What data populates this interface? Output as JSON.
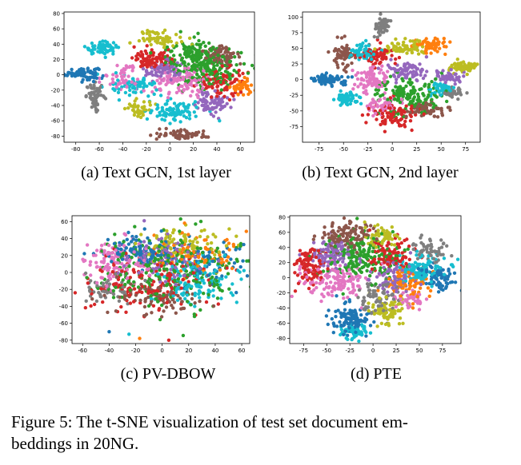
{
  "figure_caption": "Figure 5: The t-SNE visualization of test set document embeddings in 20NG.",
  "figure_caption_line1": "Figure 5: The t-SNE visualization of test set document em-",
  "figure_caption_line2": "beddings in 20NG.",
  "palette": [
    "#1f77b4",
    "#ff7f0e",
    "#2ca02c",
    "#d62728",
    "#9467bd",
    "#8c564b",
    "#e377c2",
    "#7f7f7f",
    "#bcbd22",
    "#17becf"
  ],
  "chart_data": [
    {
      "type": "scatter",
      "caption": "(a) Text GCN, 1st layer",
      "xlim": [
        -90,
        72
      ],
      "ylim": [
        -88,
        82
      ],
      "xticks": [
        -80,
        -60,
        -40,
        -20,
        0,
        20,
        40,
        60
      ],
      "yticks": [
        -80,
        -60,
        -40,
        -20,
        0,
        20,
        40,
        60,
        80
      ],
      "grid": false,
      "clusters": [
        {
          "color": 0,
          "x": -75,
          "y": 2,
          "sx": 7,
          "sy": 4,
          "n": 90
        },
        {
          "color": 9,
          "x": -58,
          "y": 35,
          "sx": 7,
          "sy": 4,
          "n": 70
        },
        {
          "color": 7,
          "x": -63,
          "y": -28,
          "sx": 4,
          "sy": 8,
          "n": 60
        },
        {
          "color": 3,
          "x": -15,
          "y": 20,
          "sx": 8,
          "sy": 6,
          "n": 90
        },
        {
          "color": 8,
          "x": -8,
          "y": 48,
          "sx": 9,
          "sy": 5,
          "n": 60
        },
        {
          "color": 4,
          "x": -5,
          "y": 5,
          "sx": 9,
          "sy": 6,
          "n": 70
        },
        {
          "color": 2,
          "x": 30,
          "y": 10,
          "sx": 16,
          "sy": 14,
          "n": 200
        },
        {
          "color": 5,
          "x": 45,
          "y": 25,
          "sx": 8,
          "sy": 8,
          "n": 70
        },
        {
          "color": 6,
          "x": 10,
          "y": -10,
          "sx": 12,
          "sy": 10,
          "n": 110
        },
        {
          "color": 9,
          "x": -30,
          "y": -15,
          "sx": 10,
          "sy": 6,
          "n": 70
        },
        {
          "color": 9,
          "x": 5,
          "y": -48,
          "sx": 11,
          "sy": 7,
          "n": 90
        },
        {
          "color": 5,
          "x": 10,
          "y": -78,
          "sx": 11,
          "sy": 3,
          "n": 60
        },
        {
          "color": 4,
          "x": 35,
          "y": -35,
          "sx": 8,
          "sy": 8,
          "n": 70
        },
        {
          "color": 8,
          "x": -25,
          "y": -45,
          "sx": 7,
          "sy": 7,
          "n": 40
        },
        {
          "color": 1,
          "x": 62,
          "y": -15,
          "sx": 5,
          "sy": 5,
          "n": 40
        },
        {
          "color": 3,
          "x": 45,
          "y": -10,
          "sx": 10,
          "sy": 10,
          "n": 80
        },
        {
          "color": 6,
          "x": -40,
          "y": -5,
          "sx": 8,
          "sy": 8,
          "n": 50
        },
        {
          "color": 2,
          "x": 20,
          "y": 30,
          "sx": 10,
          "sy": 8,
          "n": 80
        }
      ]
    },
    {
      "type": "scatter",
      "caption": "(b) Text GCN, 2nd layer",
      "xlim": [
        -92,
        90
      ],
      "ylim": [
        -100,
        108
      ],
      "xticks": [
        -75,
        -50,
        -25,
        0,
        25,
        50,
        75
      ],
      "yticks": [
        -75,
        -50,
        -25,
        0,
        25,
        50,
        75,
        100
      ],
      "grid": false,
      "clusters": [
        {
          "color": 0,
          "x": -65,
          "y": 0,
          "sx": 9,
          "sy": 4,
          "n": 90
        },
        {
          "color": 9,
          "x": -45,
          "y": -30,
          "sx": 6,
          "sy": 5,
          "n": 60
        },
        {
          "color": 5,
          "x": -50,
          "y": 40,
          "sx": 5,
          "sy": 12,
          "n": 60
        },
        {
          "color": 9,
          "x": -30,
          "y": 45,
          "sx": 7,
          "sy": 7,
          "n": 60
        },
        {
          "color": 7,
          "x": -10,
          "y": 85,
          "sx": 5,
          "sy": 8,
          "n": 50
        },
        {
          "color": 3,
          "x": -15,
          "y": 40,
          "sx": 8,
          "sy": 8,
          "n": 70
        },
        {
          "color": 8,
          "x": 10,
          "y": 50,
          "sx": 10,
          "sy": 6,
          "n": 70
        },
        {
          "color": 1,
          "x": 40,
          "y": 55,
          "sx": 8,
          "sy": 5,
          "n": 60
        },
        {
          "color": 6,
          "x": -20,
          "y": 0,
          "sx": 10,
          "sy": 10,
          "n": 80
        },
        {
          "color": 4,
          "x": 15,
          "y": 15,
          "sx": 10,
          "sy": 8,
          "n": 70
        },
        {
          "color": 2,
          "x": 15,
          "y": -25,
          "sx": 16,
          "sy": 14,
          "n": 160
        },
        {
          "color": 3,
          "x": 0,
          "y": -55,
          "sx": 12,
          "sy": 10,
          "n": 90
        },
        {
          "color": 8,
          "x": 72,
          "y": 20,
          "sx": 8,
          "sy": 5,
          "n": 60
        },
        {
          "color": 4,
          "x": 55,
          "y": 5,
          "sx": 8,
          "sy": 5,
          "n": 50
        },
        {
          "color": 7,
          "x": 60,
          "y": -20,
          "sx": 6,
          "sy": 5,
          "n": 40
        },
        {
          "color": 9,
          "x": 50,
          "y": -15,
          "sx": 6,
          "sy": 5,
          "n": 40
        },
        {
          "color": 5,
          "x": 35,
          "y": -50,
          "sx": 10,
          "sy": 6,
          "n": 60
        },
        {
          "color": 6,
          "x": -10,
          "y": -40,
          "sx": 8,
          "sy": 8,
          "n": 50
        }
      ]
    },
    {
      "type": "scatter",
      "caption": "(c) PV-DBOW",
      "xlim": [
        -68,
        66
      ],
      "ylim": [
        -84,
        67
      ],
      "xticks": [
        -60,
        -40,
        -20,
        0,
        20,
        40,
        60
      ],
      "yticks": [
        -80,
        -60,
        -40,
        -20,
        0,
        20,
        40,
        60
      ],
      "grid": false,
      "clusters": [
        {
          "color": 0,
          "x": -15,
          "y": 25,
          "sx": 14,
          "sy": 10,
          "n": 120
        },
        {
          "color": 2,
          "x": 5,
          "y": 5,
          "sx": 28,
          "sy": 20,
          "n": 260
        },
        {
          "color": 8,
          "x": 15,
          "y": 35,
          "sx": 15,
          "sy": 10,
          "n": 90
        },
        {
          "color": 3,
          "x": -10,
          "y": -15,
          "sx": 22,
          "sy": 16,
          "n": 160
        },
        {
          "color": 6,
          "x": -35,
          "y": 10,
          "sx": 12,
          "sy": 14,
          "n": 110
        },
        {
          "color": 9,
          "x": 25,
          "y": -10,
          "sx": 16,
          "sy": 14,
          "n": 120
        },
        {
          "color": 4,
          "x": 0,
          "y": 15,
          "sx": 16,
          "sy": 14,
          "n": 100
        },
        {
          "color": 5,
          "x": -5,
          "y": -30,
          "sx": 18,
          "sy": 10,
          "n": 80
        },
        {
          "color": 1,
          "x": 20,
          "y": 20,
          "sx": 18,
          "sy": 14,
          "n": 80
        },
        {
          "color": 7,
          "x": -40,
          "y": -20,
          "sx": 10,
          "sy": 10,
          "n": 50
        },
        {
          "color": 0,
          "x": 35,
          "y": 10,
          "sx": 12,
          "sy": 12,
          "n": 60
        }
      ],
      "outliers": [
        {
          "x": -40,
          "y": -70,
          "color": 0
        },
        {
          "x": -25,
          "y": -73,
          "color": 9
        },
        {
          "x": -17,
          "y": -78,
          "color": 1
        },
        {
          "x": 5,
          "y": -80,
          "color": 3
        }
      ]
    },
    {
      "type": "scatter",
      "caption": "(d) PTE",
      "xlim": [
        -90,
        95
      ],
      "ylim": [
        -87,
        82
      ],
      "xticks": [
        -75,
        -50,
        -25,
        0,
        25,
        50,
        75
      ],
      "yticks": [
        -80,
        -60,
        -40,
        -20,
        0,
        20,
        40,
        60,
        80
      ],
      "grid": false,
      "clusters": [
        {
          "color": 5,
          "x": -30,
          "y": 55,
          "sx": 14,
          "sy": 10,
          "n": 110
        },
        {
          "color": 3,
          "x": -70,
          "y": 15,
          "sx": 10,
          "sy": 12,
          "n": 90
        },
        {
          "color": 4,
          "x": -45,
          "y": 30,
          "sx": 12,
          "sy": 10,
          "n": 90
        },
        {
          "color": 2,
          "x": -10,
          "y": 25,
          "sx": 20,
          "sy": 16,
          "n": 180
        },
        {
          "color": 8,
          "x": 10,
          "y": 55,
          "sx": 10,
          "sy": 8,
          "n": 60
        },
        {
          "color": 3,
          "x": 20,
          "y": 30,
          "sx": 14,
          "sy": 12,
          "n": 90
        },
        {
          "color": 6,
          "x": -40,
          "y": -5,
          "sx": 18,
          "sy": 12,
          "n": 130
        },
        {
          "color": 9,
          "x": 50,
          "y": 10,
          "sx": 14,
          "sy": 10,
          "n": 110
        },
        {
          "color": 7,
          "x": 60,
          "y": 35,
          "sx": 10,
          "sy": 8,
          "n": 60
        },
        {
          "color": 0,
          "x": -25,
          "y": -55,
          "sx": 10,
          "sy": 10,
          "n": 110
        },
        {
          "color": 9,
          "x": -20,
          "y": -70,
          "sx": 8,
          "sy": 6,
          "n": 50
        },
        {
          "color": 8,
          "x": 15,
          "y": -45,
          "sx": 10,
          "sy": 8,
          "n": 80
        },
        {
          "color": 7,
          "x": 5,
          "y": -25,
          "sx": 12,
          "sy": 10,
          "n": 70
        },
        {
          "color": 0,
          "x": 70,
          "y": 0,
          "sx": 10,
          "sy": 8,
          "n": 70
        },
        {
          "color": 1,
          "x": 35,
          "y": -10,
          "sx": 12,
          "sy": 10,
          "n": 70
        },
        {
          "color": 6,
          "x": 40,
          "y": -30,
          "sx": 10,
          "sy": 6,
          "n": 40
        },
        {
          "color": 4,
          "x": 25,
          "y": 0,
          "sx": 14,
          "sy": 12,
          "n": 80
        }
      ]
    }
  ]
}
